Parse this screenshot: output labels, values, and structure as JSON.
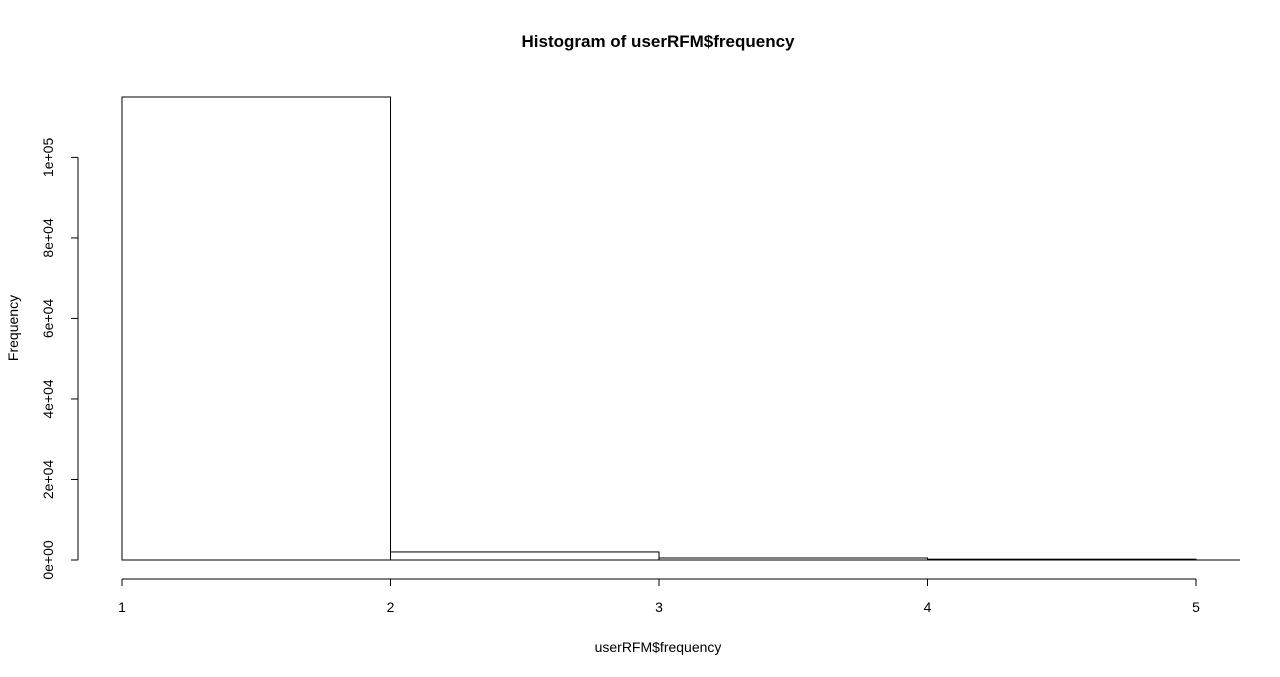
{
  "chart_data": {
    "type": "bar",
    "title": "Histogram of userRFM$frequency",
    "xlabel": "userRFM$frequency",
    "ylabel": "Frequency",
    "bins": [
      {
        "from": 1,
        "to": 2,
        "count": 115000
      },
      {
        "from": 2,
        "to": 3,
        "count": 2000
      },
      {
        "from": 3,
        "to": 4,
        "count": 500
      },
      {
        "from": 4,
        "to": 5,
        "count": 200
      }
    ],
    "xlim": [
      1,
      5
    ],
    "ylim": [
      0,
      115000
    ],
    "x_ticks": [
      1,
      2,
      3,
      4,
      5
    ],
    "x_tick_labels": [
      "1",
      "2",
      "3",
      "4",
      "5"
    ],
    "y_ticks": [
      0,
      20000,
      40000,
      60000,
      80000,
      100000
    ],
    "y_tick_labels": [
      "0e+00",
      "2e+04",
      "4e+04",
      "6e+04",
      "8e+04",
      "1e+05"
    ],
    "grid": false,
    "legend": "none",
    "bar_fill": "#ffffff",
    "bar_stroke": "#000000"
  }
}
